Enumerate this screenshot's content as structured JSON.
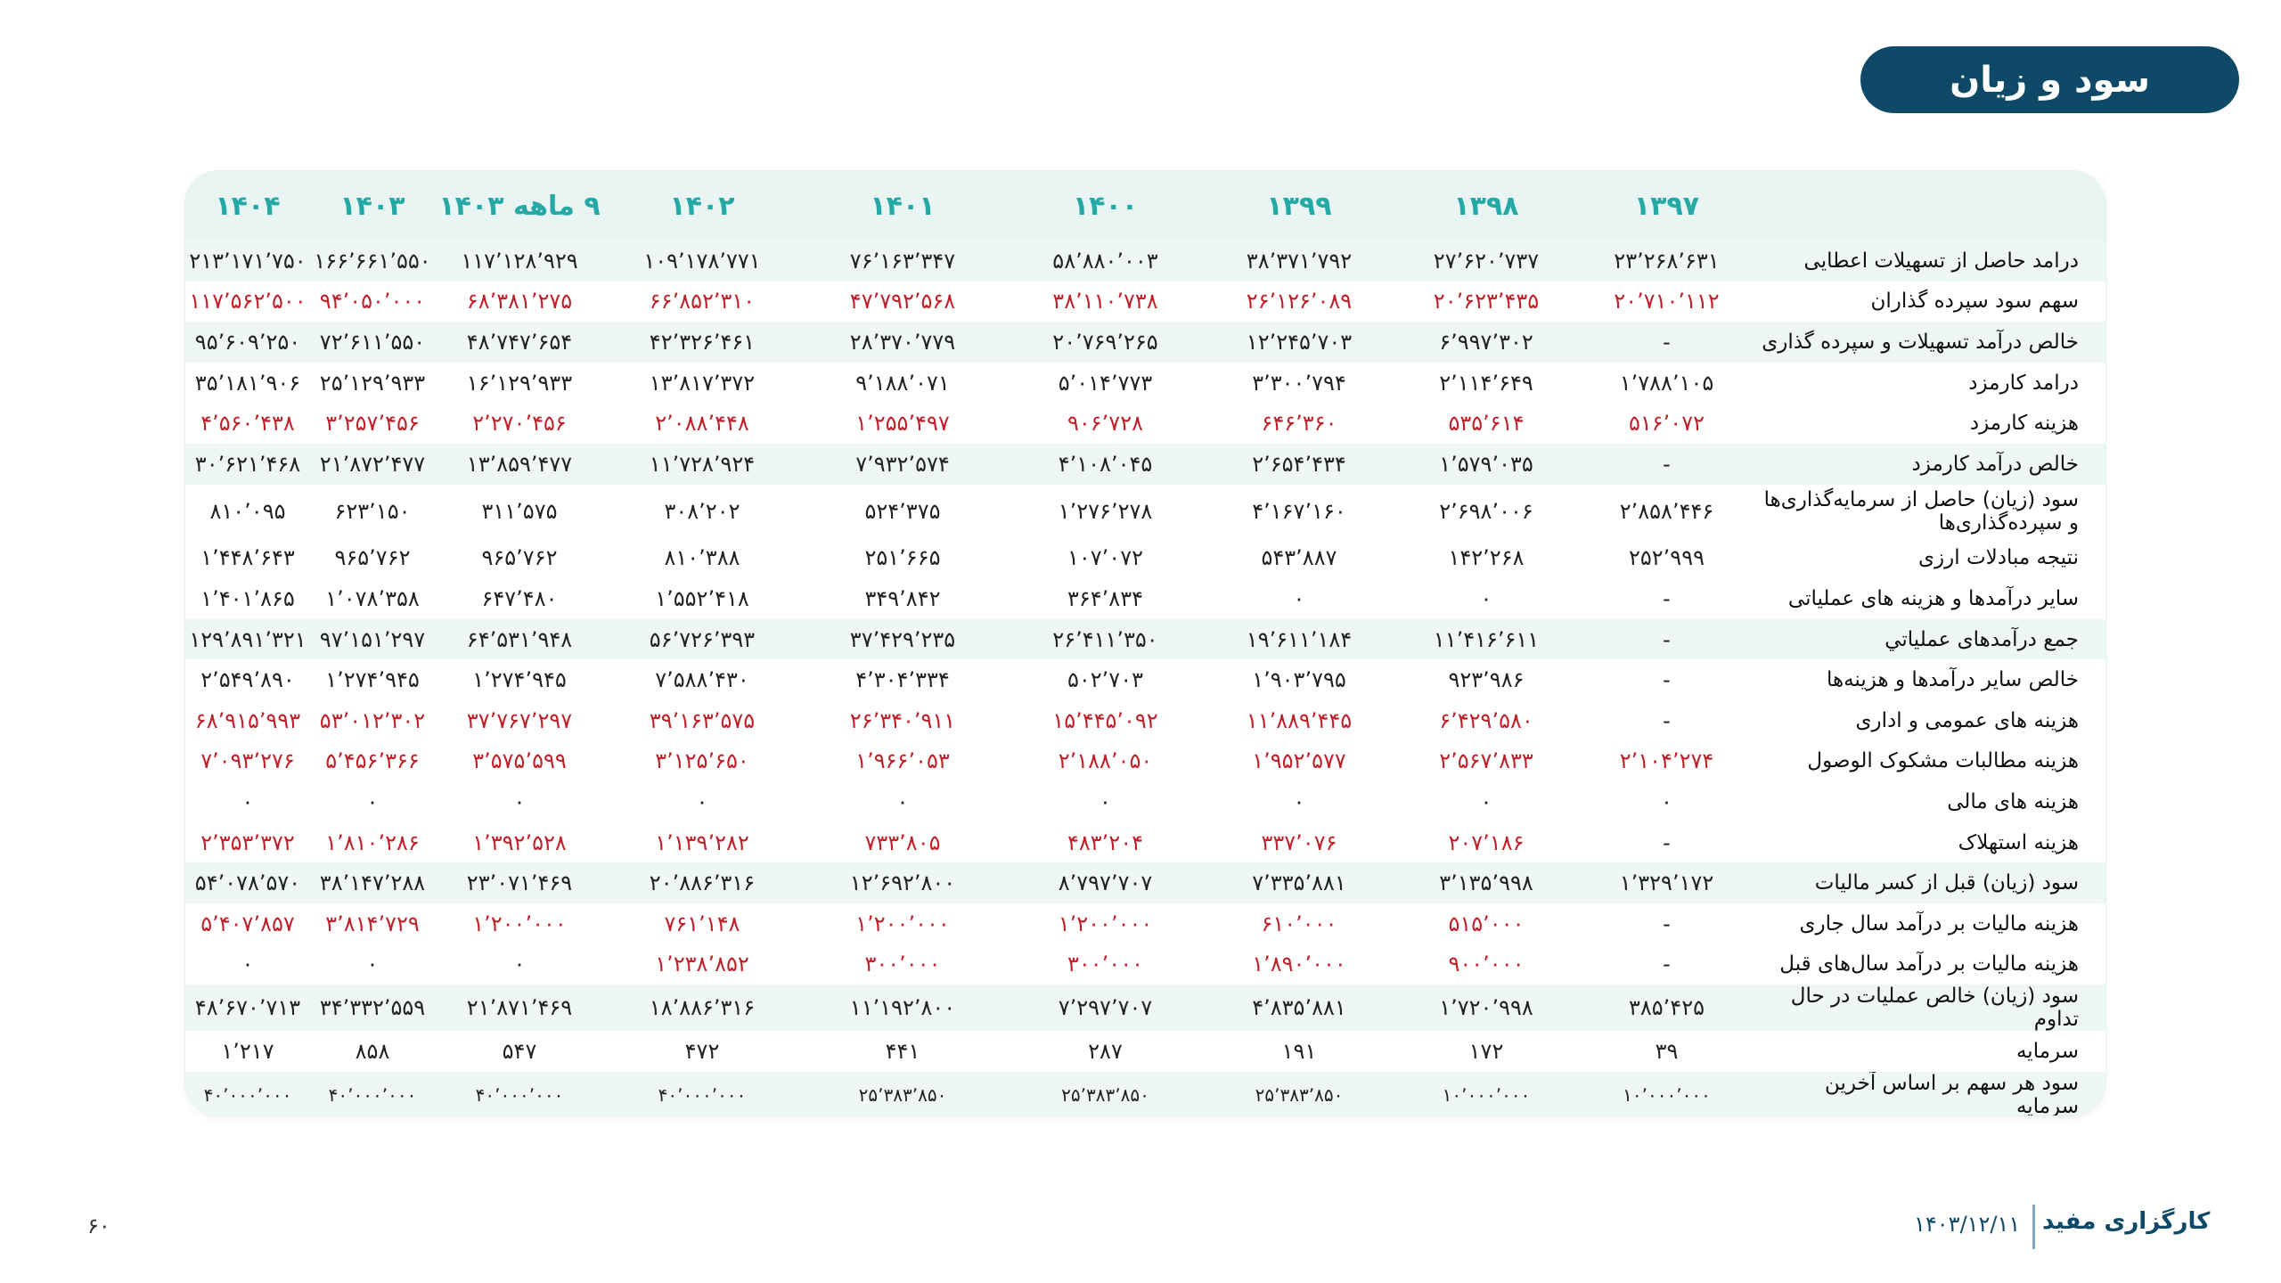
{
  "title": "سود و زیان",
  "columns": [
    "۱۳۹۷",
    "۱۳۹۸",
    "۱۳۹۹",
    "۱۴۰۰",
    "۱۴۰۱",
    "۱۴۰۲",
    "۹ ماهه ۱۴۰۳",
    "۱۴۰۳",
    "۱۴۰۴"
  ],
  "rows": [
    {
      "label": "درامد حاصل از تسهیلات اعطایی",
      "values": [
        "۲۳٬۲۶۸٬۶۳۱",
        "۲۷٬۶۲۰٬۷۳۷",
        "۳۸٬۳۷۱٬۷۹۲",
        "۵۸٬۸۸۰٬۰۰۳",
        "۷۶٬۱۶۳٬۳۴۷",
        "۱۰۹٬۱۷۸٬۷۷۱",
        "۱۱۷٬۱۲۸٬۹۲۹",
        "۱۶۶٬۶۶۱٬۵۵۰",
        "۲۱۳٬۱۷۱٬۷۵۰"
      ]
    },
    {
      "label": "سهم سود سپرده گذاران",
      "values": [
        "۲۰٬۷۱۰٬۱۱۲",
        "۲۰٬۶۲۳٬۴۳۵",
        "۲۶٬۱۲۶٬۰۸۹",
        "۳۸٬۱۱۰٬۷۳۸",
        "۴۷٬۷۹۲٬۵۶۸",
        "۶۶٬۸۵۲٬۳۱۰",
        "۶۸٬۳۸۱٬۲۷۵",
        "۹۴٬۰۵۰٬۰۰۰",
        "۱۱۷٬۵۶۲٬۵۰۰"
      ]
    },
    {
      "label": "خالص درآمد تسهیلات و سپرده گذاری",
      "values": [
        "-",
        "۶٬۹۹۷٬۳۰۲",
        "۱۲٬۲۴۵٬۷۰۳",
        "۲۰٬۷۶۹٬۲۶۵",
        "۲۸٬۳۷۰٬۷۷۹",
        "۴۲٬۳۲۶٬۴۶۱",
        "۴۸٬۷۴۷٬۶۵۴",
        "۷۲٬۶۱۱٬۵۵۰",
        "۹۵٬۶۰۹٬۲۵۰"
      ]
    },
    {
      "label": "درامد کارمزد",
      "values": [
        "۱٬۷۸۸٬۱۰۵",
        "۲٬۱۱۴٬۶۴۹",
        "۳٬۳۰۰٬۷۹۴",
        "۵٬۰۱۴٬۷۷۳",
        "۹٬۱۸۸٬۰۷۱",
        "۱۳٬۸۱۷٬۳۷۲",
        "۱۶٬۱۲۹٬۹۳۳",
        "۲۵٬۱۲۹٬۹۳۳",
        "۳۵٬۱۸۱٬۹۰۶"
      ]
    },
    {
      "label": "هزینه کارمزد",
      "values": [
        "۵۱۶٬۰۷۲",
        "۵۳۵٬۶۱۴",
        "۶۴۶٬۳۶۰",
        "۹۰۶٬۷۲۸",
        "۱٬۲۵۵٬۴۹۷",
        "۲٬۰۸۸٬۴۴۸",
        "۲٬۲۷۰٬۴۵۶",
        "۳٬۲۵۷٬۴۵۶",
        "۴٬۵۶۰٬۴۳۸"
      ]
    },
    {
      "label": "خالص درآمد کارمزد",
      "values": [
        "-",
        "۱٬۵۷۹٬۰۳۵",
        "۲٬۶۵۴٬۴۳۴",
        "۴٬۱۰۸٬۰۴۵",
        "۷٬۹۳۲٬۵۷۴",
        "۱۱٬۷۲۸٬۹۲۴",
        "۱۳٬۸۵۹٬۴۷۷",
        "۲۱٬۸۷۲٬۴۷۷",
        "۳۰٬۶۲۱٬۴۶۸"
      ]
    },
    {
      "label": "سود (زیان) حاصل از سرمایه‌گذاری‌ها و سپرده‌گذاری‌ها",
      "values": [
        "۲٬۸۵۸٬۴۴۶",
        "۲٬۶۹۸٬۰۰۶",
        "۴٬۱۶۷٬۱۶۰",
        "۱٬۲۷۶٬۲۷۸",
        "۵۲۴٬۳۷۵",
        "۳۰۸٬۲۰۲",
        "۳۱۱٬۵۷۵",
        "۶۲۳٬۱۵۰",
        "۸۱۰٬۰۹۵"
      ]
    },
    {
      "label": "نتیجه مبادلات ارزی",
      "values": [
        "۲۵۲٬۹۹۹",
        "۱۴۲٬۲۶۸",
        "۵۴۳٬۸۸۷",
        "۱۰۷٬۰۷۲",
        "۲۵۱٬۶۶۵",
        "۸۱۰٬۳۸۸",
        "۹۶۵٬۷۶۲",
        "۹۶۵٬۷۶۲",
        "۱٬۴۴۸٬۶۴۳"
      ]
    },
    {
      "label": "سایر درآمدها و هزینه های عملیاتی",
      "values": [
        "-",
        "۰",
        "۰",
        "۳۶۴٬۸۳۴",
        "۳۴۹٬۸۴۲",
        "۱٬۵۵۲٬۴۱۸",
        "۶۴۷٬۴۸۰",
        "۱٬۰۷۸٬۳۵۸",
        "۱٬۴۰۱٬۸۶۵"
      ]
    },
    {
      "label": "جمع درآمدهای عملیاتي",
      "values": [
        "-",
        "۱۱٬۴۱۶٬۶۱۱",
        "۱۹٬۶۱۱٬۱۸۴",
        "۲۶٬۴۱۱٬۳۵۰",
        "۳۷٬۴۲۹٬۲۳۵",
        "۵۶٬۷۲۶٬۳۹۳",
        "۶۴٬۵۳۱٬۹۴۸",
        "۹۷٬۱۵۱٬۲۹۷",
        "۱۲۹٬۸۹۱٬۳۲۱"
      ]
    },
    {
      "label": "خالص سایر درآمدها و هزینه‌ها",
      "values": [
        "-",
        "۹۲۳٬۹۸۶",
        "۱٬۹۰۳٬۷۹۵",
        "۵۰۲٬۷۰۳",
        "۴٬۳۰۴٬۳۳۴",
        "۷٬۵۸۸٬۴۳۰",
        "۱٬۲۷۴٬۹۴۵",
        "۱٬۲۷۴٬۹۴۵",
        "۲٬۵۴۹٬۸۹۰"
      ]
    },
    {
      "label": "هزینه های عمومی و اداری",
      "values": [
        "-",
        "۶٬۴۲۹٬۵۸۰",
        "۱۱٬۸۸۹٬۴۴۵",
        "۱۵٬۴۴۵٬۰۹۲",
        "۲۶٬۳۴۰٬۹۱۱",
        "۳۹٬۱۶۳٬۵۷۵",
        "۳۷٬۷۶۷٬۲۹۷",
        "۵۳٬۰۱۲٬۳۰۲",
        "۶۸٬۹۱۵٬۹۹۳"
      ]
    },
    {
      "label": "هزینه مطالبات مشکوک الوصول",
      "values": [
        "۲٬۱۰۴٬۲۷۴",
        "۲٬۵۶۷٬۸۳۳",
        "۱٬۹۵۲٬۵۷۷",
        "۲٬۱۸۸٬۰۵۰",
        "۱٬۹۶۶٬۰۵۳",
        "۳٬۱۲۵٬۶۵۰",
        "۳٬۵۷۵٬۵۹۹",
        "۵٬۴۵۶٬۳۶۶",
        "۷٬۰۹۳٬۲۷۶"
      ]
    },
    {
      "label": "هزینه های مالی",
      "values": [
        "۰",
        "۰",
        "۰",
        "۰",
        "۰",
        "۰",
        "۰",
        "۰",
        "۰"
      ]
    },
    {
      "label": "هزینه استهلاک",
      "values": [
        "-",
        "۲۰۷٬۱۸۶",
        "۳۳۷٬۰۷۶",
        "۴۸۳٬۲۰۴",
        "۷۳۳٬۸۰۵",
        "۱٬۱۳۹٬۲۸۲",
        "۱٬۳۹۲٬۵۲۸",
        "۱٬۸۱۰٬۲۸۶",
        "۲٬۳۵۳٬۳۷۲"
      ]
    },
    {
      "label": "سود (زیان) قبل از کسر مالیات",
      "values": [
        "۱٬۳۲۹٬۱۷۲",
        "۳٬۱۳۵٬۹۹۸",
        "۷٬۳۳۵٬۸۸۱",
        "۸٬۷۹۷٬۷۰۷",
        "۱۲٬۶۹۲٬۸۰۰",
        "۲۰٬۸۸۶٬۳۱۶",
        "۲۳٬۰۷۱٬۴۶۹",
        "۳۸٬۱۴۷٬۲۸۸",
        "۵۴٬۰۷۸٬۵۷۰"
      ]
    },
    {
      "label": "هزینه مالیات بر درآمد سال جاری",
      "values": [
        "-",
        "۵۱۵٬۰۰۰",
        "۶۱۰٬۰۰۰",
        "۱٬۲۰۰٬۰۰۰",
        "۱٬۲۰۰٬۰۰۰",
        "۷۶۱٬۱۴۸",
        "۱٬۲۰۰٬۰۰۰",
        "۳٬۸۱۴٬۷۲۹",
        "۵٬۴۰۷٬۸۵۷"
      ]
    },
    {
      "label": "هزینه مالیات بر درآمد سال‌های قبل",
      "values": [
        "-",
        "۹۰۰٬۰۰۰",
        "۱٬۸۹۰٬۰۰۰",
        "۳۰۰٬۰۰۰",
        "۳۰۰٬۰۰۰",
        "۱٬۲۳۸٬۸۵۲",
        "۰",
        "۰",
        "۰"
      ]
    },
    {
      "label": "سود (زیان) خالص عملیات در حال تداوم",
      "values": [
        "۳۸۵٬۴۲۵",
        "۱٬۷۲۰٬۹۹۸",
        "۴٬۸۳۵٬۸۸۱",
        "۷٬۲۹۷٬۷۰۷",
        "۱۱٬۱۹۲٬۸۰۰",
        "۱۸٬۸۸۶٬۳۱۶",
        "۲۱٬۸۷۱٬۴۶۹",
        "۳۴٬۳۳۲٬۵۵۹",
        "۴۸٬۶۷۰٬۷۱۳"
      ]
    },
    {
      "label": "سرمایه",
      "values": [
        "۳۹",
        "۱۷۲",
        "۱۹۱",
        "۲۸۷",
        "۴۴۱",
        "۴۷۲",
        "۵۴۷",
        "۸۵۸",
        "۱٬۲۱۷"
      ]
    },
    {
      "label": "سود هر سهم بر اساس آخرین سرمایه",
      "values": [
        "۱۰٬۰۰۰٬۰۰۰",
        "۱۰٬۰۰۰٬۰۰۰",
        "۲۵٬۳۸۳٬۸۵۰",
        "۲۵٬۳۸۳٬۸۵۰",
        "۲۵٬۳۸۳٬۸۵۰",
        "۴۰٬۰۰۰٬۰۰۰",
        "۴۰٬۰۰۰٬۰۰۰",
        "۴۰٬۰۰۰٬۰۰۰",
        "۴۰٬۰۰۰٬۰۰۰"
      ]
    }
  ],
  "negative_rows": [
    1,
    4,
    11,
    12,
    14,
    16,
    17
  ],
  "colors": {
    "brand": "#0e4a68",
    "header_text": "#24a9a6",
    "negative": "#c0202a",
    "band": "#eef7f5"
  },
  "footer": {
    "page_number": "۶۰",
    "brand": "کارگزاری مفید",
    "date": "۱۴۰۳/۱۲/۱۱"
  }
}
